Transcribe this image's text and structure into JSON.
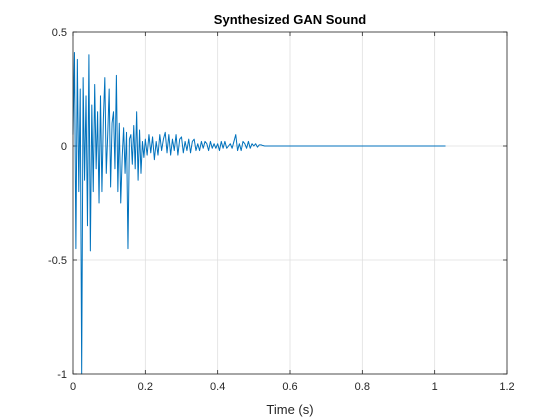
{
  "chart_data": {
    "type": "line",
    "title": "Synthesized GAN Sound",
    "xlabel": "Time (s)",
    "ylabel": "",
    "xlim": [
      0,
      1.2
    ],
    "ylim": [
      -1,
      0.5
    ],
    "xticks": [
      0,
      0.2,
      0.4,
      0.6,
      0.8,
      1,
      1.2
    ],
    "xtick_labels": [
      "0",
      "0.2",
      "0.4",
      "0.6",
      "0.8",
      "1",
      "1.2"
    ],
    "yticks": [
      -1,
      -0.5,
      0,
      0.5
    ],
    "ytick_labels": [
      "-1",
      "-0.5",
      "0",
      "0.5"
    ],
    "grid": true,
    "line_color": "#0072BD",
    "series": [
      {
        "name": "",
        "x": [
          0,
          0.004,
          0.008,
          0.012,
          0.016,
          0.02,
          0.024,
          0.028,
          0.032,
          0.036,
          0.04,
          0.044,
          0.048,
          0.052,
          0.056,
          0.06,
          0.064,
          0.068,
          0.072,
          0.076,
          0.08,
          0.084,
          0.088,
          0.092,
          0.096,
          0.1,
          0.104,
          0.108,
          0.112,
          0.116,
          0.12,
          0.124,
          0.128,
          0.132,
          0.136,
          0.14,
          0.144,
          0.148,
          0.152,
          0.156,
          0.16,
          0.164,
          0.168,
          0.172,
          0.176,
          0.18,
          0.184,
          0.188,
          0.192,
          0.196,
          0.2,
          0.205,
          0.21,
          0.215,
          0.22,
          0.225,
          0.23,
          0.235,
          0.24,
          0.245,
          0.25,
          0.255,
          0.26,
          0.265,
          0.27,
          0.275,
          0.28,
          0.285,
          0.29,
          0.295,
          0.3,
          0.305,
          0.31,
          0.315,
          0.32,
          0.325,
          0.33,
          0.335,
          0.34,
          0.345,
          0.35,
          0.355,
          0.36,
          0.365,
          0.37,
          0.375,
          0.38,
          0.385,
          0.39,
          0.395,
          0.4,
          0.405,
          0.41,
          0.415,
          0.42,
          0.425,
          0.43,
          0.435,
          0.44,
          0.445,
          0.45,
          0.455,
          0.46,
          0.465,
          0.47,
          0.475,
          0.48,
          0.485,
          0.49,
          0.495,
          0.5,
          0.505,
          0.51,
          0.515,
          0.52,
          0.525,
          0.53,
          0.6,
          0.7,
          0.8,
          0.9,
          1.0,
          1.03
        ],
        "y": [
          0.05,
          0.41,
          -0.45,
          0.38,
          -0.2,
          0.25,
          -1.0,
          0.3,
          -0.15,
          0.22,
          -0.35,
          0.4,
          -0.46,
          0.18,
          -0.2,
          0.27,
          -0.1,
          0.15,
          -0.25,
          0.22,
          -0.2,
          0.12,
          0.3,
          -0.12,
          0.05,
          0.25,
          -0.18,
          0.1,
          0.15,
          -0.1,
          0.31,
          -0.2,
          0.1,
          -0.25,
          -0.05,
          0.08,
          -0.12,
          0.06,
          -0.45,
          0.03,
          0.05,
          -0.08,
          0.09,
          -0.1,
          0.15,
          -0.15,
          0.07,
          -0.12,
          0.02,
          -0.05,
          0.03,
          -0.04,
          0.05,
          -0.03,
          0.04,
          -0.06,
          0.02,
          -0.04,
          0.05,
          -0.02,
          0.03,
          0.06,
          -0.03,
          0.05,
          -0.04,
          0.03,
          -0.02,
          0.05,
          -0.04,
          0.03,
          0.04,
          -0.03,
          0.02,
          -0.02,
          0.03,
          -0.03,
          0.02,
          0.03,
          -0.02,
          0.01,
          -0.02,
          0.02,
          -0.01,
          0.02,
          0.01,
          -0.02,
          0.02,
          -0.01,
          0.01,
          -0.01,
          0.01,
          -0.02,
          0.02,
          -0.01,
          0.02,
          -0.01,
          0.0,
          0.01,
          -0.01,
          0.02,
          0.05,
          -0.02,
          0.01,
          -0.02,
          0.02,
          0.01,
          -0.01,
          0.02,
          -0.01,
          0.01,
          0.0,
          0.01,
          -0.005,
          0.005,
          0.005,
          0.002,
          0.0,
          0.0,
          0.0,
          0.0,
          0.0,
          0.0,
          0.0
        ]
      }
    ]
  }
}
